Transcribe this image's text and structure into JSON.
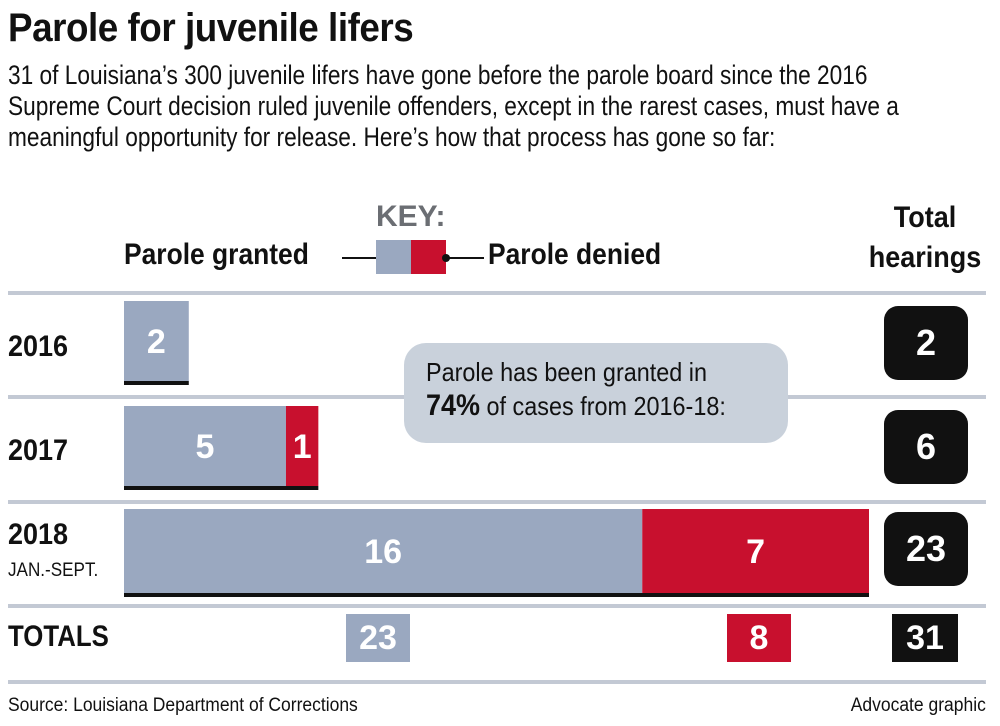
{
  "header": {
    "title": "Parole for juvenile lifers",
    "intro": "31 of Louisiana’s 300 juvenile lifers have gone before the parole board since the 2016 Supreme Court decision ruled juvenile offenders, except in the rarest cases, must have a meaningful opportunity for release. Here’s how that process has gone so far:"
  },
  "key": {
    "label": "KEY:",
    "granted": "Parole granted",
    "denied": "Parole denied"
  },
  "total_header": {
    "line1": "Total",
    "line2": "hearings"
  },
  "callout": {
    "line1": "Parole has been granted in",
    "pct": "74%",
    "line2_rest": " of cases from 2016-18:"
  },
  "chart_data": {
    "type": "bar",
    "orientation": "horizontal",
    "stacked": true,
    "categories": [
      "2016",
      "2017",
      "2018"
    ],
    "category_sublabels": [
      "",
      "",
      "JAN.-SEPT."
    ],
    "series": [
      {
        "name": "Parole granted",
        "color": "#9aa8c0",
        "values": [
          2,
          5,
          16
        ]
      },
      {
        "name": "Parole denied",
        "color": "#c8102e",
        "values": [
          0,
          1,
          7
        ]
      }
    ],
    "totals_per_year": [
      2,
      6,
      23
    ],
    "totals": {
      "label": "TOTALS",
      "granted": 23,
      "denied": 8,
      "all": 31
    },
    "xlim": [
      0,
      23
    ]
  },
  "footer": {
    "source": "Source: Louisiana Department of Corrections",
    "credit": "Advocate graphic"
  }
}
